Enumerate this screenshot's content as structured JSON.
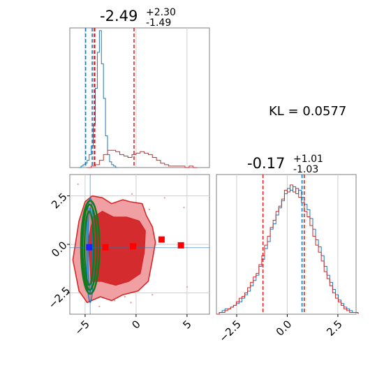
{
  "figure": {
    "kl_annotation": "KL = 0.0577",
    "colors": {
      "blue": "#1f77b4",
      "red": "#d62728",
      "green": "#117a1f",
      "grid": "#cfcfcf",
      "frame": "#808080",
      "red_fill_light": "#f0a0a3",
      "red_fill_dark": "#d42b2e",
      "marker_red": "#ff0000",
      "marker_blue": "#1f1fff"
    }
  },
  "chart_data": [
    {
      "type": "histogram",
      "panel": "top-left",
      "title": {
        "median": "-2.49",
        "plus": "+2.30",
        "minus": "-1.49"
      },
      "xlim": [
        -6.5,
        7.2
      ],
      "x_ticks": [
        -5,
        0,
        5
      ],
      "series": [
        {
          "color": "blue",
          "bin_width": 0.2,
          "bin_start": -5.6,
          "counts": [
            0,
            1,
            2,
            3,
            5,
            9,
            15,
            30,
            55,
            80,
            95,
            72,
            48,
            22,
            9,
            4,
            2,
            1,
            0
          ],
          "quantiles": [
            -4.95,
            -4.3,
            -4.1
          ]
        },
        {
          "color": "red",
          "bin_width": 0.4,
          "bin_start": -4.8,
          "counts": [
            0,
            1,
            2,
            5,
            9,
            12,
            12,
            11,
            9,
            8,
            7,
            9,
            10,
            11,
            10,
            9,
            7,
            5,
            3,
            2,
            1,
            1,
            1,
            1,
            0,
            1,
            0
          ],
          "quantiles": [
            -4.1,
            -4.05,
            -0.2
          ]
        }
      ]
    },
    {
      "type": "contour",
      "panel": "bottom-left",
      "xlim": [
        -6.5,
        7.2
      ],
      "ylim": [
        -3.6,
        3.6
      ],
      "x_ticks": [
        -5,
        0,
        5
      ],
      "y_ticks": [
        -2.5,
        0.0,
        2.5
      ],
      "red_level_low": [
        [
          -6.2,
          -0.8
        ],
        [
          -5.6,
          -2.4
        ],
        [
          -4.8,
          -3.0
        ],
        [
          -3.5,
          -2.7
        ],
        [
          -2.4,
          -2.9
        ],
        [
          -1.3,
          -2.6
        ],
        [
          0.2,
          -2.4
        ],
        [
          1.2,
          -1.9
        ],
        [
          1.6,
          -0.8
        ],
        [
          1.9,
          0.1
        ],
        [
          1.6,
          0.9
        ],
        [
          1.0,
          1.5
        ],
        [
          0.6,
          2.1
        ],
        [
          -0.6,
          2.2
        ],
        [
          -1.3,
          2.3
        ],
        [
          -2.4,
          2.1
        ],
        [
          -3.3,
          2.4
        ],
        [
          -4.3,
          2.5
        ],
        [
          -5.0,
          2.2
        ],
        [
          -5.6,
          1.2
        ]
      ],
      "red_level_high": [
        [
          -4.4,
          -1.9
        ],
        [
          -3.4,
          -1.9
        ],
        [
          -2.0,
          -2.1
        ],
        [
          -0.7,
          -1.9
        ],
        [
          0.4,
          -1.5
        ],
        [
          0.8,
          -0.4
        ],
        [
          0.9,
          0.7
        ],
        [
          0.3,
          1.2
        ],
        [
          -0.9,
          1.4
        ],
        [
          -2.2,
          1.4
        ],
        [
          -3.3,
          1.7
        ],
        [
          -4.2,
          1.4
        ],
        [
          -4.7,
          0.2
        ]
      ],
      "blue_ellipses": [
        {
          "cx": -4.5,
          "cy": -0.3,
          "rx": 0.35,
          "ry": 2.7
        },
        {
          "cx": -4.5,
          "cy": -0.3,
          "rx": 0.22,
          "ry": 2.2
        }
      ],
      "green_ellipses": [
        {
          "cx": -4.5,
          "cy": -0.15,
          "rx": 0.9,
          "ry": 2.4
        },
        {
          "cx": -4.55,
          "cy": -0.15,
          "rx": 0.7,
          "ry": 2.2
        },
        {
          "cx": -4.6,
          "cy": -0.2,
          "rx": 0.45,
          "ry": 1.9
        }
      ],
      "red_markers": [
        [
          -3.0,
          -0.15
        ],
        [
          -0.3,
          -0.1
        ],
        [
          2.5,
          0.25
        ],
        [
          4.4,
          -0.05
        ]
      ],
      "blue_markers": [
        [
          -4.6,
          -0.15
        ]
      ],
      "outlier_points": [
        [
          -5.7,
          3.1
        ],
        [
          -6.1,
          -0.8
        ],
        [
          -3.6,
          -3.2
        ],
        [
          -1.1,
          -2.7
        ],
        [
          -0.5,
          -3.0
        ],
        [
          -2.1,
          -2.9
        ],
        [
          1.6,
          -2.6
        ],
        [
          4.7,
          1.9
        ],
        [
          5.0,
          -2.2
        ],
        [
          2.8,
          2.4
        ],
        [
          -0.4,
          2.6
        ],
        [
          1.3,
          1.8
        ]
      ],
      "hv_lines": {
        "x": -4.5,
        "y": -0.17
      }
    },
    {
      "type": "histogram",
      "panel": "bottom-right",
      "title": {
        "median": "-0.17",
        "plus": "+1.01",
        "minus": "-1.03"
      },
      "xlim": [
        -3.5,
        3.4
      ],
      "x_ticks": [
        -2.5,
        0.0,
        2.5
      ],
      "series": [
        {
          "color": "blue",
          "bin_width": 0.14,
          "bin_start": -3.5,
          "counts": [
            0,
            1,
            2,
            3,
            3,
            4,
            5,
            6,
            7,
            9,
            11,
            13,
            16,
            19,
            22,
            27,
            31,
            37,
            41,
            48,
            51,
            56,
            60,
            64,
            68,
            71,
            70,
            72,
            68,
            70,
            66,
            62,
            59,
            54,
            48,
            42,
            38,
            33,
            27,
            22,
            18,
            14,
            11,
            8,
            6,
            4,
            3,
            2,
            1,
            1
          ]
        },
        {
          "color": "red",
          "bin_width": 0.14,
          "bin_start": -3.5,
          "counts": [
            0,
            1,
            1,
            2,
            3,
            4,
            5,
            7,
            9,
            10,
            12,
            15,
            18,
            21,
            23,
            28,
            33,
            39,
            44,
            49,
            53,
            58,
            61,
            65,
            70,
            69,
            73,
            69,
            71,
            66,
            63,
            58,
            55,
            50,
            44,
            39,
            35,
            30,
            24,
            20,
            16,
            12,
            9,
            7,
            5,
            3,
            2,
            1,
            1,
            1
          ]
        }
      ],
      "quantiles_blue": [
        0.73
      ],
      "quantiles_red": [
        -1.2,
        0.84
      ]
    }
  ]
}
